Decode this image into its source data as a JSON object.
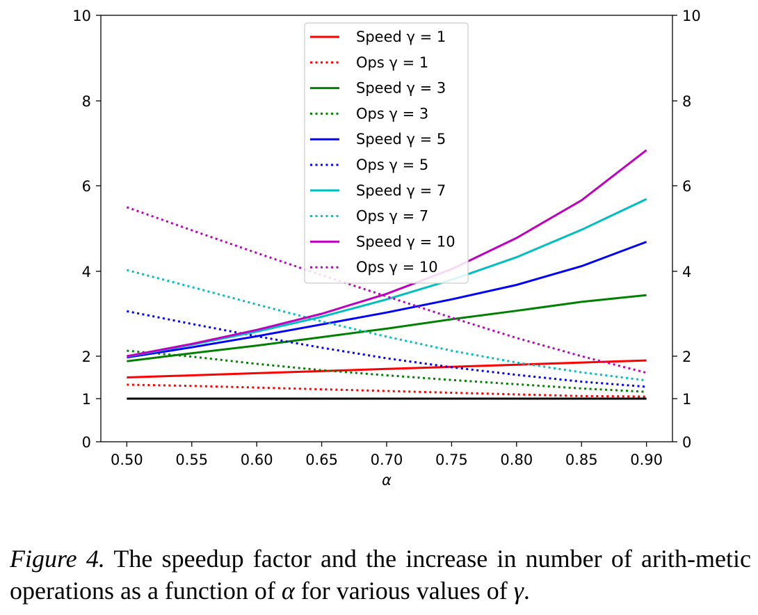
{
  "chart_data": {
    "type": "line",
    "title": "",
    "xlabel": "α",
    "ylabel": "",
    "xlim": [
      0.48,
      0.92
    ],
    "ylim": [
      0,
      10
    ],
    "y_scale": "speedup axis (non-linear, ticks 0,1,2,4,6,8,10)",
    "x_ticks": [
      "0.50",
      "0.55",
      "0.60",
      "0.65",
      "0.70",
      "0.75",
      "0.80",
      "0.85",
      "0.90"
    ],
    "y_ticks_left": [
      "0",
      "1",
      "2",
      "4",
      "6",
      "8",
      "10"
    ],
    "y_ticks_right": [
      "0",
      "1",
      "2",
      "4",
      "6",
      "8",
      "10"
    ],
    "grid": false,
    "legend_position": "top-center",
    "x": [
      0.5,
      0.55,
      0.6,
      0.65,
      0.7,
      0.75,
      0.8,
      0.85,
      0.9
    ],
    "series": [
      {
        "name": "Speed γ = 1",
        "color": "#ff0000",
        "style": "solid",
        "values": [
          1.5,
          1.55,
          1.6,
          1.65,
          1.7,
          1.75,
          1.8,
          1.85,
          1.9
        ]
      },
      {
        "name": "Ops γ = 1",
        "color": "#ff0000",
        "style": "dotted",
        "values": [
          1.33,
          1.3,
          1.26,
          1.22,
          1.18,
          1.14,
          1.1,
          1.06,
          1.05
        ]
      },
      {
        "name": "Speed γ = 3",
        "color": "#008000",
        "style": "solid",
        "values": [
          1.88,
          2.07,
          2.25,
          2.45,
          2.65,
          2.87,
          3.07,
          3.28,
          3.44
        ]
      },
      {
        "name": "Ops γ = 3",
        "color": "#008000",
        "style": "dotted",
        "values": [
          2.13,
          1.99,
          1.82,
          1.67,
          1.55,
          1.44,
          1.34,
          1.24,
          1.16
        ]
      },
      {
        "name": "Speed γ = 5",
        "color": "#0000ff",
        "style": "solid",
        "values": [
          1.97,
          2.21,
          2.47,
          2.75,
          3.03,
          3.34,
          3.68,
          4.12,
          4.69
        ]
      },
      {
        "name": "Ops γ = 5",
        "color": "#0000ff",
        "style": "dotted",
        "values": [
          3.06,
          2.76,
          2.47,
          2.2,
          1.95,
          1.74,
          1.56,
          1.4,
          1.28
        ]
      },
      {
        "name": "Speed γ = 7",
        "color": "#00bfbf",
        "style": "solid",
        "values": [
          1.99,
          2.27,
          2.58,
          2.93,
          3.34,
          3.8,
          4.33,
          4.97,
          5.69
        ]
      },
      {
        "name": "Ops γ = 7",
        "color": "#00bfbf",
        "style": "dotted",
        "values": [
          4.03,
          3.63,
          3.22,
          2.82,
          2.46,
          2.13,
          1.85,
          1.62,
          1.43
        ]
      },
      {
        "name": "Speed γ = 10",
        "color": "#bf00bf",
        "style": "solid",
        "values": [
          2.0,
          2.29,
          2.62,
          3.0,
          3.47,
          4.05,
          4.78,
          5.66,
          6.84
        ]
      },
      {
        "name": "Ops γ = 10",
        "color": "#bf00bf",
        "style": "dotted",
        "values": [
          5.5,
          4.96,
          4.43,
          3.91,
          3.41,
          2.91,
          2.43,
          2.0,
          1.61
        ]
      }
    ],
    "baseline": {
      "color": "#000000",
      "value": 1
    }
  },
  "caption": {
    "label": "Figure 4.",
    "text_1": " The speedup factor and the increase in number of arith-metic operations as a function of ",
    "alpha": "α",
    "text_2": " for various values of ",
    "gamma": "γ",
    "text_3": "."
  }
}
